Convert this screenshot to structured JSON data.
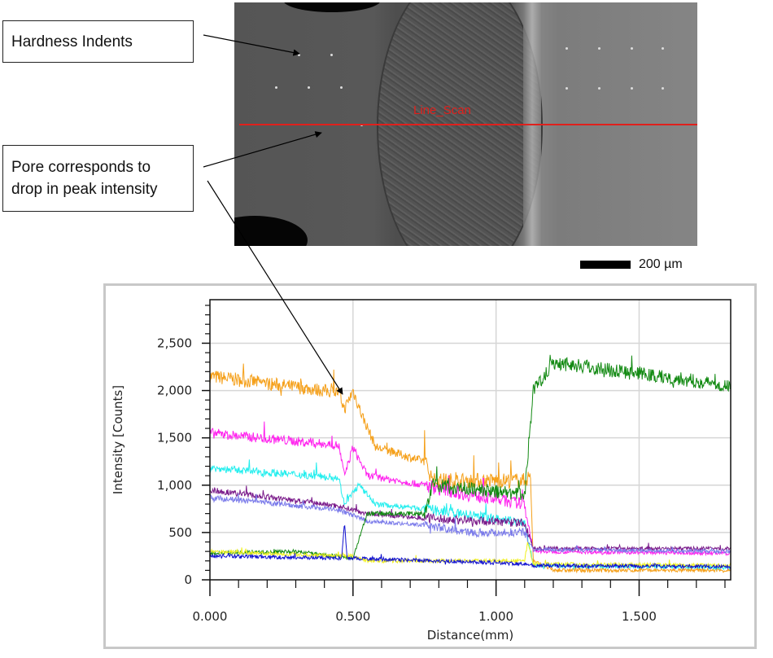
{
  "annotations": {
    "hardness_indents": "Hardness Indents",
    "pore_line1": "Pore corresponds to",
    "pore_line2": "drop in peak intensity"
  },
  "micrograph": {
    "scan_label": "Line_Scan",
    "scan_color": "#e0201c",
    "scale_bar_label": "200 µm"
  },
  "chart_data": {
    "type": "line",
    "title": "",
    "xlabel": "Distance(mm)",
    "ylabel": "Intensity [Counts]",
    "xlim": [
      0,
      1.82
    ],
    "ylim": [
      0,
      2960
    ],
    "xticks": [
      0,
      0.5,
      1.0,
      1.5
    ],
    "xtick_labels": [
      "0.000",
      "0.500",
      "1.000",
      "1.500"
    ],
    "yticks": [
      0,
      500,
      1000,
      1500,
      2000,
      2500
    ],
    "ytick_labels": [
      "0",
      "500",
      "1,000",
      "1,500",
      "2,000",
      "2,500"
    ],
    "grid": true,
    "legend": "none",
    "series": [
      {
        "color": "#f5a01a",
        "points": [
          [
            0,
            2150
          ],
          [
            0.45,
            1980
          ],
          [
            0.47,
            1800
          ],
          [
            0.5,
            2000
          ],
          [
            0.53,
            1750
          ],
          [
            0.58,
            1400
          ],
          [
            0.75,
            1250
          ],
          [
            0.78,
            1050
          ],
          [
            1.1,
            1050
          ],
          [
            1.12,
            1100
          ],
          [
            1.13,
            200
          ],
          [
            1.2,
            100
          ],
          [
            1.82,
            100
          ]
        ]
      },
      {
        "color": "#ff22ee",
        "points": [
          [
            0,
            1550
          ],
          [
            0.45,
            1420
          ],
          [
            0.47,
            1100
          ],
          [
            0.5,
            1400
          ],
          [
            0.55,
            1100
          ],
          [
            0.75,
            1000
          ],
          [
            0.9,
            900
          ],
          [
            1.1,
            800
          ],
          [
            1.13,
            300
          ],
          [
            1.82,
            280
          ]
        ]
      },
      {
        "color": "#22eeee",
        "points": [
          [
            0,
            1180
          ],
          [
            0.45,
            1080
          ],
          [
            0.47,
            800
          ],
          [
            0.52,
            1000
          ],
          [
            0.58,
            800
          ],
          [
            0.75,
            750
          ],
          [
            1.1,
            600
          ],
          [
            1.13,
            150
          ],
          [
            1.82,
            130
          ]
        ]
      },
      {
        "color": "#7a1a8a",
        "points": [
          [
            0,
            950
          ],
          [
            0.45,
            780
          ],
          [
            0.55,
            700
          ],
          [
            0.75,
            650
          ],
          [
            1.1,
            600
          ],
          [
            1.13,
            330
          ],
          [
            1.82,
            330
          ]
        ]
      },
      {
        "color": "#7b7bea",
        "points": [
          [
            0,
            870
          ],
          [
            0.45,
            740
          ],
          [
            0.55,
            620
          ],
          [
            0.75,
            580
          ],
          [
            0.9,
            500
          ],
          [
            1.1,
            500
          ],
          [
            1.13,
            320
          ],
          [
            1.82,
            300
          ]
        ]
      },
      {
        "color": "#138a13",
        "points": [
          [
            0,
            280
          ],
          [
            0.3,
            300
          ],
          [
            0.5,
            230
          ],
          [
            0.55,
            700
          ],
          [
            0.75,
            700
          ],
          [
            0.78,
            1000
          ],
          [
            1.1,
            900
          ],
          [
            1.13,
            2000
          ],
          [
            1.2,
            2300
          ],
          [
            1.82,
            2050
          ]
        ]
      },
      {
        "color": "#f0f020",
        "points": [
          [
            0,
            300
          ],
          [
            0.5,
            250
          ],
          [
            0.55,
            200
          ],
          [
            1.1,
            200
          ],
          [
            1.11,
            400
          ],
          [
            1.13,
            170
          ],
          [
            1.82,
            150
          ]
        ]
      },
      {
        "color": "#1010d0",
        "points": [
          [
            0,
            250
          ],
          [
            0.46,
            230
          ],
          [
            0.47,
            600
          ],
          [
            0.48,
            230
          ],
          [
            1.1,
            170
          ],
          [
            1.13,
            150
          ],
          [
            1.82,
            140
          ]
        ]
      }
    ]
  }
}
